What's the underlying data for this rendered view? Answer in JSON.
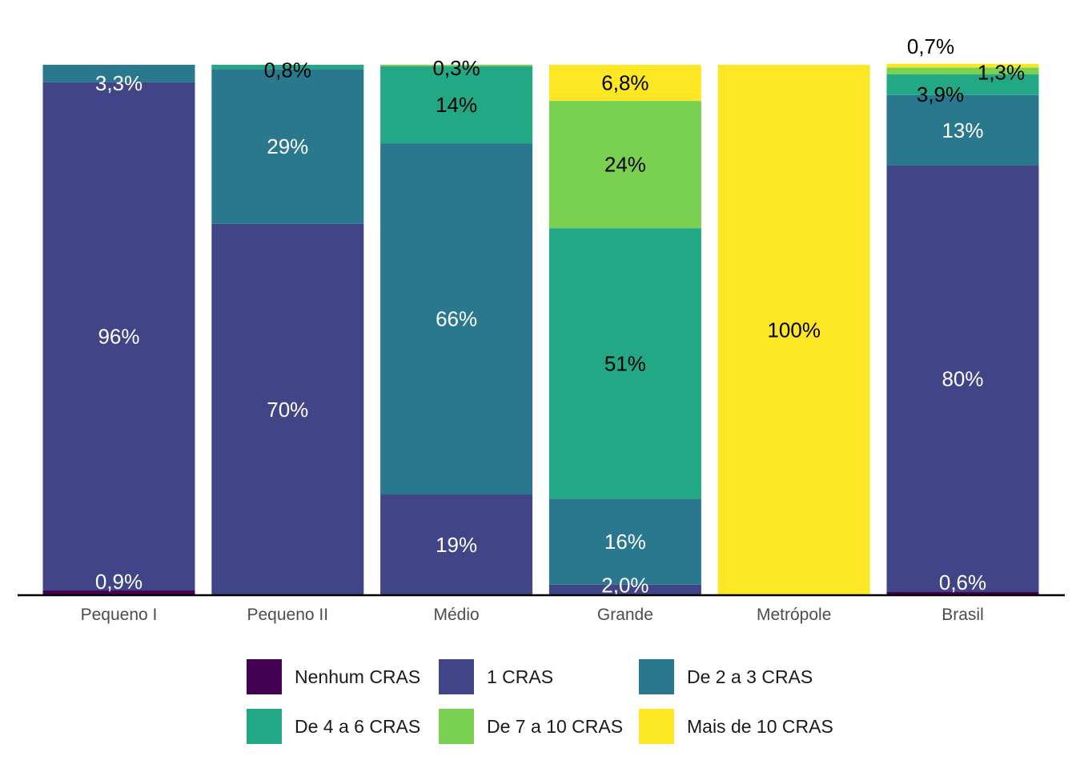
{
  "chart_data": {
    "type": "bar",
    "stacked": true,
    "percent": true,
    "categories": [
      "Pequeno I",
      "Pequeno II",
      "Médio",
      "Grande",
      "Metrópole",
      "Brasil"
    ],
    "ylim": [
      0,
      100
    ],
    "legend_position": "bottom",
    "grid": false,
    "series": [
      {
        "name": "Nenhum CRAS",
        "color": "#440154",
        "values": [
          0.9,
          0,
          0,
          0,
          0,
          0.6
        ],
        "labels": [
          "0,9%",
          "",
          "",
          "",
          "",
          "0,6%"
        ]
      },
      {
        "name": "1 CRAS",
        "color": "#414487",
        "values": [
          95.8,
          70.0,
          19.0,
          2.0,
          0,
          80.4
        ],
        "labels": [
          "96%",
          "70%",
          "19%",
          "2,0%",
          "",
          "80%"
        ]
      },
      {
        "name": "De 2 a 3 CRAS",
        "color": "#2a788e",
        "values": [
          3.3,
          29.2,
          66.2,
          16.2,
          0,
          13.3
        ],
        "labels": [
          "3,3%",
          "29%",
          "66%",
          "16%",
          "",
          "13%"
        ]
      },
      {
        "name": "De 4 a 6 CRAS",
        "color": "#22a884",
        "values": [
          0,
          0.8,
          14.5,
          51.0,
          0,
          3.9
        ],
        "labels": [
          "",
          "0,8%",
          "14%",
          "51%",
          "",
          "3,9%"
        ]
      },
      {
        "name": "De 7 a 10 CRAS",
        "color": "#7ad151",
        "values": [
          0,
          0,
          0.3,
          24.0,
          0,
          1.3
        ],
        "labels": [
          "",
          "",
          "0,3%",
          "24%",
          "",
          "1,3%"
        ]
      },
      {
        "name": "Mais de 10 CRAS",
        "color": "#fde725",
        "values": [
          0,
          0,
          0,
          6.8,
          100,
          0.7
        ],
        "labels": [
          "",
          "",
          "",
          "6,8%",
          "100%",
          "0,7%"
        ]
      }
    ]
  }
}
